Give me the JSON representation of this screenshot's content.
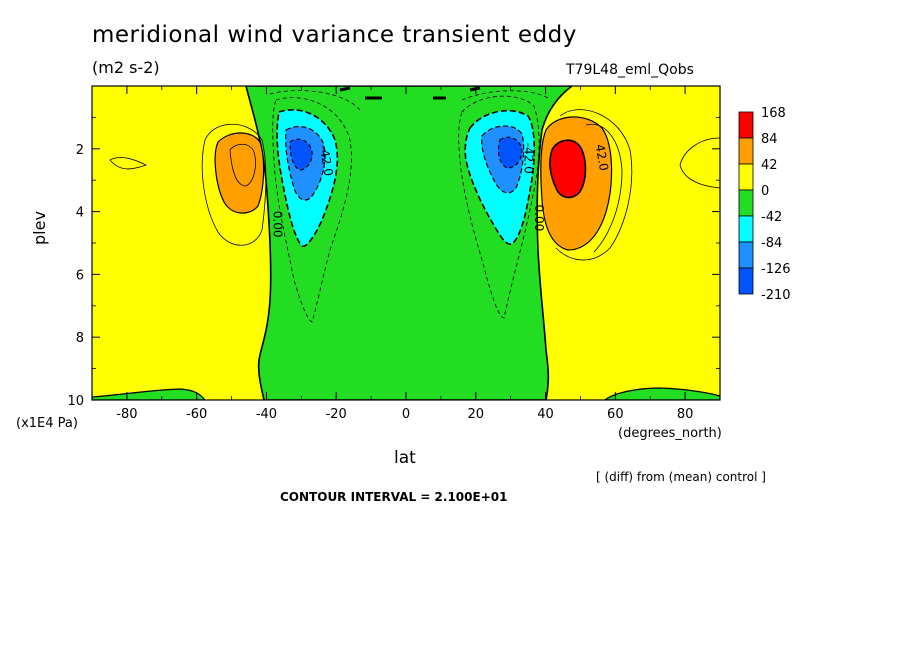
{
  "header": {
    "title": "meridional wind variance transient eddy",
    "units": "(m2 s-2)",
    "run_id": "T79L48_eml_Qobs"
  },
  "footer": {
    "y_unit": "(x1E4 Pa)",
    "x_unit": "(degrees_north)",
    "diff_note": "[ (diff) from (mean) control ]",
    "contour_interval": "CONTOUR INTERVAL = 2.100E+01"
  },
  "colors": {
    "c168": "#ff0000",
    "c84": "#ff9f00",
    "c42": "#ffff00",
    "c0": "#22dd22",
    "cm42": "#00ffff",
    "cm84": "#1e90ff",
    "cm126": "#0055ff"
  },
  "chart_data": {
    "type": "heatmap",
    "subtype": "filled-contour",
    "title": "meridional wind variance transient eddy",
    "xlabel": "lat",
    "ylabel": "plev",
    "xlim": [
      -90,
      90
    ],
    "ylim": [
      0,
      10
    ],
    "y_inverted": true,
    "x_ticks": [
      -80,
      -60,
      -40,
      -20,
      0,
      20,
      40,
      60,
      80
    ],
    "y_ticks": [
      2,
      4,
      6,
      8,
      10
    ],
    "x_tick_labels": [
      "-80",
      "-60",
      "-40",
      "-20",
      "0",
      "20",
      "40",
      "60",
      "80"
    ],
    "y_tick_labels": [
      "2",
      "4",
      "6",
      "8",
      "10"
    ],
    "legend": {
      "position": "right",
      "labels": [
        "168",
        "84",
        "42",
        "0",
        "-42",
        "-84",
        "-126",
        "-210"
      ],
      "colors": [
        "#ff0000",
        "#ff9f00",
        "#ffff00",
        "#22dd22",
        "#00ffff",
        "#1e90ff",
        "#0055ff"
      ]
    },
    "contour_labels": [
      {
        "text": "0.00",
        "lat": -38,
        "plev": 4.4,
        "rotate": 90
      },
      {
        "text": "-42.0",
        "lat": -24,
        "plev": 2.4,
        "rotate": 80
      },
      {
        "text": "0.00",
        "lat": 37,
        "plev": 4.2,
        "rotate": 90
      },
      {
        "text": "-42.0",
        "lat": 34,
        "plev": 2.3,
        "rotate": 90
      },
      {
        "text": "42.0",
        "lat": 55,
        "plev": 2.3,
        "rotate": 80
      }
    ],
    "features": [
      {
        "name": "negative band",
        "lat_range": [
          -40,
          38
        ],
        "plev_range": [
          0,
          10
        ],
        "value_range": [
          -42,
          0
        ]
      },
      {
        "name": "SH negative jet",
        "lat": -30,
        "plev": 2.4,
        "min_band": [
          -210,
          -126
        ]
      },
      {
        "name": "NH negative jet",
        "lat": 29,
        "plev": 2.4,
        "min_band": [
          -210,
          -126
        ]
      },
      {
        "name": "SH positive max",
        "lat": -47,
        "plev": 2.8,
        "max_band": [
          84,
          168
        ]
      },
      {
        "name": "NH positive max",
        "lat": 45,
        "plev": 2.8,
        "max_band": [
          168,
          999
        ]
      }
    ]
  }
}
